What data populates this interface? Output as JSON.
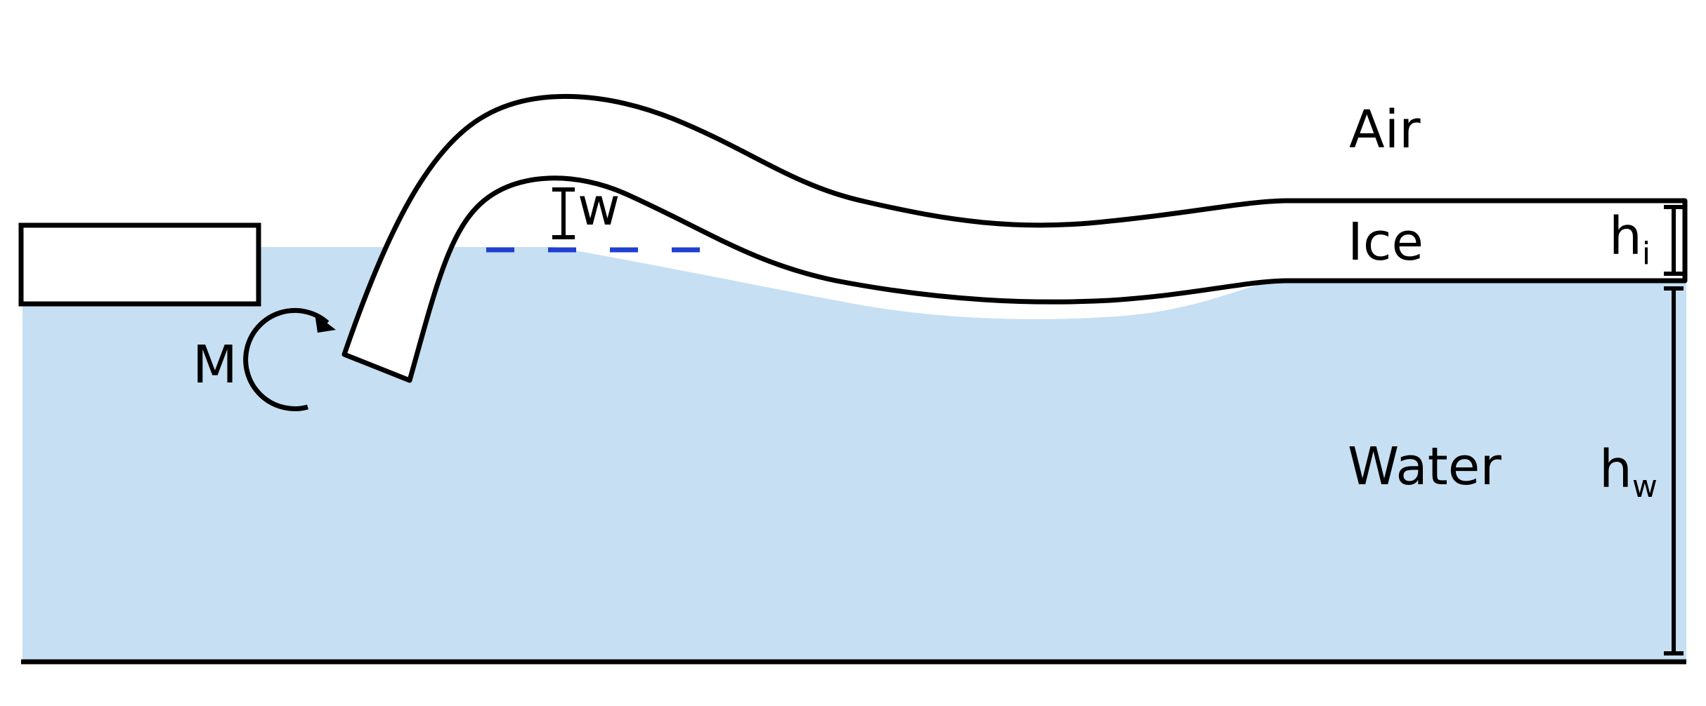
{
  "diagram": {
    "labels": {
      "air": "Air",
      "ice": "Ice",
      "water": "Water",
      "moment": "M",
      "deflection": "w",
      "ice_thickness_base": "h",
      "ice_thickness_sub": "i",
      "water_depth_base": "h",
      "water_depth_sub": "w"
    },
    "colors": {
      "water": "#c6dff2",
      "ice": "#ffffff",
      "outline": "#000000",
      "reference_line": "#1f3fcf"
    }
  }
}
